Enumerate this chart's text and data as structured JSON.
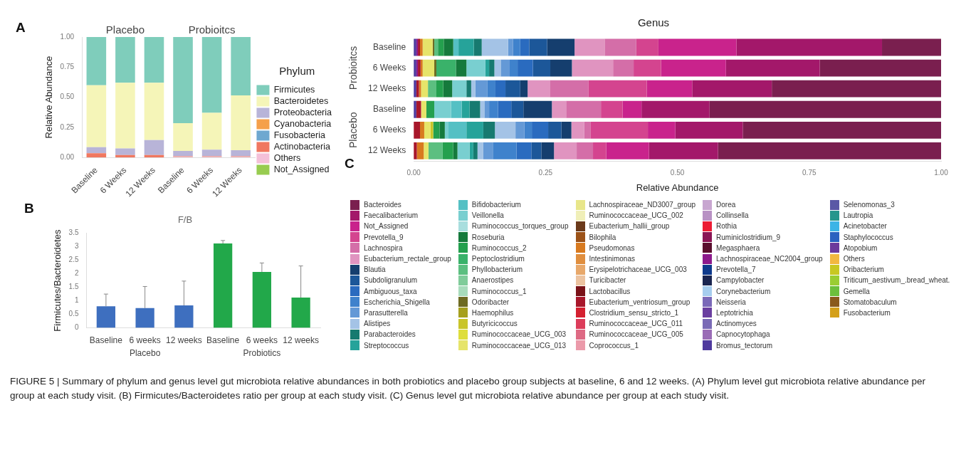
{
  "chart_data": [
    {
      "type": "bar",
      "stacked": true,
      "ylabel": "Relative Abundance",
      "legend_title": "Phylum",
      "legend": "right",
      "annotations": [
        "A",
        "Placebo",
        "Probioitcs"
      ],
      "categories": [
        "Baseline",
        "6 Weeks",
        "12 Weeks",
        "Baseline",
        "6 Weeks",
        "12 Weeks"
      ],
      "ylim": [
        0,
        1
      ],
      "yticks": [
        {
          "value": 0,
          "label": "0.00"
        },
        {
          "value": 0.25,
          "label": "0.25"
        },
        {
          "value": 0.5,
          "label": "0.50"
        },
        {
          "value": 0.75,
          "label": "0.75"
        },
        {
          "value": 1,
          "label": "1.00"
        }
      ],
      "series": [
        {
          "name": "Not_Assigned",
          "color": "#98cc50",
          "values": [
            0,
            0,
            0,
            0,
            0,
            0
          ]
        },
        {
          "name": "Others",
          "color": "#f4c0d8",
          "values": [
            0,
            0,
            0,
            0.005,
            0.005,
            0.005
          ]
        },
        {
          "name": "Actinobacteria",
          "color": "#f07860",
          "values": [
            0.035,
            0.02,
            0.02,
            0.005,
            0.005,
            0.005
          ]
        },
        {
          "name": "Fusobacteria",
          "color": "#6fa8d0",
          "values": [
            0,
            0,
            0,
            0,
            0,
            0
          ]
        },
        {
          "name": "Cyanobacteria",
          "color": "#f5a04a",
          "values": [
            0,
            0,
            0,
            0,
            0,
            0
          ]
        },
        {
          "name": "Proteobacteria",
          "color": "#b8b4d8",
          "values": [
            0.05,
            0.055,
            0.125,
            0.045,
            0.055,
            0.05
          ]
        },
        {
          "name": "Bacteroidetes",
          "color": "#f5f5b8",
          "values": [
            0.515,
            0.545,
            0.475,
            0.23,
            0.305,
            0.455
          ]
        },
        {
          "name": "Firmicutes",
          "color": "#7fcdbb",
          "values": [
            0.4,
            0.38,
            0.38,
            0.715,
            0.63,
            0.485
          ]
        }
      ]
    },
    {
      "type": "bar",
      "title": "F/B",
      "ylabel": "Firmicutes/Bacteroidetes",
      "annotations": [
        "B",
        "Placebo",
        "Probiotics"
      ],
      "categories": [
        "Baseline",
        "6 weeks",
        "12 weeks",
        "Baseline",
        "6 weeks",
        "12 weeks"
      ],
      "values": [
        0.8,
        0.73,
        0.83,
        3.12,
        2.07,
        1.12
      ],
      "colors": [
        "#3e6fbf",
        "#3e6fbf",
        "#3e6fbf",
        "#22a84a",
        "#22a84a",
        "#22a84a"
      ],
      "errors": [
        [
          0.8,
          1.25
        ],
        [
          0.73,
          1.53
        ],
        [
          0.83,
          1.73
        ],
        [
          3.12,
          3.23
        ],
        [
          2.07,
          2.4
        ],
        [
          1.12,
          2.29
        ]
      ],
      "ylim": [
        0,
        3.5
      ],
      "yticks": [
        0,
        0.5,
        1,
        1.5,
        2,
        2.5,
        3,
        3.5
      ]
    },
    {
      "type": "bar",
      "stacked": true,
      "orientation": "horizontal",
      "title": "Genus",
      "xlabel": "Relative Abundance",
      "legend": "bottom",
      "annotations": [
        "C",
        "Probioitcs",
        "Placebo",
        "FIGURE 5 | Summary of phylum and genus level gut microbiota relative abundances in both probiotics and placebo group subjects at baseline, 6 and 12 weeks. (A) Phylum level gut microbiota relative abundance per group at each study visit. (B) Firmicutes/Bacteroidetes ratio per group at each study visit. (C) Genus level gut microbiota relative abundance per group at each study visit."
      ],
      "categories": [
        "Baseline",
        "6 Weeks",
        "12 Weeks",
        "Baseline",
        "6 Weeks",
        "12 Weeks"
      ],
      "xlim": [
        0,
        1
      ],
      "xticks": [
        {
          "value": 0,
          "label": "0.00"
        },
        {
          "value": 0.25,
          "label": "0.25"
        },
        {
          "value": 0.5,
          "label": "0.50"
        },
        {
          "value": 0.75,
          "label": "0.75"
        },
        {
          "value": 1,
          "label": "1.00"
        }
      ],
      "series": [
        {
          "name": "Fusobacterium",
          "color": "#d4a01a",
          "values": [
            0,
            0,
            0,
            0,
            0,
            0
          ]
        },
        {
          "name": "Stomatobaculum",
          "color": "#8a5a1c",
          "values": [
            0,
            0,
            0,
            0,
            0,
            0
          ]
        },
        {
          "name": "Gemella",
          "color": "#6cbf3c",
          "values": [
            0,
            0,
            0,
            0,
            0,
            0
          ]
        },
        {
          "name": "Triticum_aestivum_.bread_wheat.",
          "color": "#9acd32",
          "values": [
            0,
            0,
            0,
            0,
            0,
            0
          ]
        },
        {
          "name": "Oribacterium",
          "color": "#c8c822",
          "values": [
            0,
            0,
            0,
            0,
            0,
            0
          ]
        },
        {
          "name": "Others",
          "color": "#f2b840",
          "values": [
            0,
            0,
            0,
            0,
            0,
            0
          ]
        },
        {
          "name": "Atopobium",
          "color": "#6c3a9c",
          "values": [
            0,
            0,
            0,
            0,
            0,
            0
          ]
        },
        {
          "name": "Staphylococcus",
          "color": "#2a62c0",
          "values": [
            0,
            0,
            0,
            0,
            0,
            0
          ]
        },
        {
          "name": "Acinetobacter",
          "color": "#3cb4e6",
          "values": [
            0,
            0,
            0,
            0,
            0,
            0
          ]
        },
        {
          "name": "Lautropia",
          "color": "#26968c",
          "values": [
            0,
            0,
            0,
            0,
            0,
            0
          ]
        },
        {
          "name": "Selenomonas_3",
          "color": "#5a58a6",
          "values": [
            0,
            0,
            0,
            0,
            0,
            0
          ]
        },
        {
          "name": "Bromus_tectorum",
          "color": "#4f3a9e",
          "values": [
            0.005,
            0.005,
            0.005,
            0.005,
            0,
            0
          ]
        },
        {
          "name": "Capnocytophaga",
          "color": "#9a6cb6",
          "values": [
            0,
            0,
            0,
            0,
            0,
            0
          ]
        },
        {
          "name": "Actinomyces",
          "color": "#7a6ab6",
          "values": [
            0,
            0,
            0,
            0,
            0,
            0
          ]
        },
        {
          "name": "Leptotrichia",
          "color": "#6a3ea0",
          "values": [
            0,
            0,
            0,
            0,
            0,
            0
          ]
        },
        {
          "name": "Neisseria",
          "color": "#7a68b8",
          "values": [
            0,
            0,
            0,
            0,
            0,
            0
          ]
        },
        {
          "name": "Corynebacterium",
          "color": "#a6cdee",
          "values": [
            0,
            0,
            0,
            0,
            0,
            0
          ]
        },
        {
          "name": "Campylobacter",
          "color": "#1a2550",
          "values": [
            0,
            0,
            0,
            0,
            0,
            0
          ]
        },
        {
          "name": "Prevotella_7",
          "color": "#0e3a8c",
          "values": [
            0,
            0,
            0,
            0,
            0,
            0
          ]
        },
        {
          "name": "Lachnospiraceae_NC2004_group",
          "color": "#8c1a8c",
          "values": [
            0.003,
            0.003,
            0,
            0,
            0,
            0
          ]
        },
        {
          "name": "Megasphaera",
          "color": "#5a0f2e",
          "values": [
            0,
            0,
            0,
            0,
            0,
            0
          ]
        },
        {
          "name": "Ruminiclostridium_9",
          "color": "#8a1454",
          "values": [
            0,
            0,
            0,
            0,
            0,
            0
          ]
        },
        {
          "name": "Rothia",
          "color": "#ec1c34",
          "values": [
            0,
            0,
            0,
            0,
            0,
            0
          ]
        },
        {
          "name": "Collinsella",
          "color": "#b891c4",
          "values": [
            0,
            0,
            0,
            0,
            0,
            0
          ]
        },
        {
          "name": "Dorea",
          "color": "#c8a6d0",
          "values": [
            0,
            0,
            0,
            0,
            0,
            0
          ]
        },
        {
          "name": "Coprococcus_1",
          "color": "#eb9aaa",
          "values": [
            0,
            0,
            0,
            0,
            0,
            0
          ]
        },
        {
          "name": "Ruminococcaceae_UCG_005",
          "color": "#de6a84",
          "values": [
            0,
            0,
            0,
            0,
            0,
            0
          ]
        },
        {
          "name": "Ruminococcaceae_UCG_011",
          "color": "#dc3c5a",
          "values": [
            0,
            0,
            0,
            0,
            0,
            0
          ]
        },
        {
          "name": "Clostridium_sensu_stricto_1",
          "color": "#d42030",
          "values": [
            0,
            0,
            0,
            0,
            0,
            0
          ]
        },
        {
          "name": "Eubacterium_ventriosum_group",
          "color": "#a8172b",
          "values": [
            0.004,
            0.005,
            0.005,
            0.009,
            0.012,
            0.006
          ]
        },
        {
          "name": "Lactobacillus",
          "color": "#7a1218",
          "values": [
            0,
            0,
            0,
            0,
            0,
            0
          ]
        },
        {
          "name": "Turicibacter",
          "color": "#ecc3a0",
          "values": [
            0,
            0,
            0,
            0,
            0,
            0
          ]
        },
        {
          "name": "Erysipelotrichaceae_UCG_003",
          "color": "#e8a86a",
          "values": [
            0,
            0,
            0,
            0,
            0,
            0
          ]
        },
        {
          "name": "Intestinimonas",
          "color": "#e08e3e",
          "values": [
            0,
            0,
            0,
            0,
            0,
            0
          ]
        },
        {
          "name": "Pseudomonas",
          "color": "#d87a1f",
          "values": [
            0.005,
            0.004,
            0.004,
            0,
            0.008,
            0.013
          ]
        },
        {
          "name": "Bilophila",
          "color": "#9c5218",
          "values": [
            0,
            0,
            0,
            0,
            0,
            0
          ]
        },
        {
          "name": "Eubacterium_hallii_group",
          "color": "#6b3a1a",
          "values": [
            0,
            0,
            0,
            0,
            0,
            0
          ]
        },
        {
          "name": "Ruminococcaceae_UCG_002",
          "color": "#f0efb8",
          "values": [
            0,
            0,
            0,
            0,
            0,
            0
          ]
        },
        {
          "name": "Lachnospiraceae_ND3007_group",
          "color": "#e8e68a",
          "values": [
            0,
            0,
            0,
            0,
            0,
            0
          ]
        },
        {
          "name": "Ruminococcaceae_UCG_013",
          "color": "#e6e46a",
          "values": [
            0.019,
            0.022,
            0.013,
            0.01,
            0.012,
            0.009
          ]
        },
        {
          "name": "Ruminococcaceae_UCG_003",
          "color": "#dede3c",
          "values": [
            0,
            0,
            0,
            0,
            0,
            0
          ]
        },
        {
          "name": "Butyricicoccus",
          "color": "#c9c529",
          "values": [
            0,
            0,
            0,
            0,
            0.005,
            0
          ]
        },
        {
          "name": "Haemophilus",
          "color": "#a6a01e",
          "values": [
            0,
            0,
            0,
            0,
            0,
            0
          ]
        },
        {
          "name": "Odoribacter",
          "color": "#6e6b22",
          "values": [
            0.003,
            0.004,
            0,
            0,
            0,
            0
          ]
        },
        {
          "name": "Ruminococcus_1",
          "color": "#a8dcbc",
          "values": [
            0,
            0,
            0,
            0,
            0,
            0
          ]
        },
        {
          "name": "Anaerostipes",
          "color": "#80cc9a",
          "values": [
            0,
            0,
            0,
            0,
            0,
            0
          ]
        },
        {
          "name": "Phyllobacterium",
          "color": "#5cbf80",
          "values": [
            0.007,
            0,
            0.016,
            0,
            0,
            0.027
          ]
        },
        {
          "name": "Peptoclostridium",
          "color": "#3ab26a",
          "values": [
            0,
            0.037,
            0,
            0,
            0,
            0
          ]
        },
        {
          "name": "Ruminococcus_2",
          "color": "#24a04e",
          "values": [
            0.011,
            0,
            0.013,
            0.015,
            0.012,
            0.02
          ]
        },
        {
          "name": "Roseburia",
          "color": "#157a3c",
          "values": [
            0.018,
            0.02,
            0.017,
            0,
            0.01,
            0.008
          ]
        },
        {
          "name": "Ruminococcus_torques_group",
          "color": "#a8dede",
          "values": [
            0,
            0,
            0,
            0,
            0,
            0
          ]
        },
        {
          "name": "Veillonella",
          "color": "#79cfd0",
          "values": [
            0,
            0.036,
            0.027,
            0.032,
            0.007,
            0.023
          ]
        },
        {
          "name": "Bifidobacterium",
          "color": "#55c0c4",
          "values": [
            0.01,
            0,
            0,
            0.02,
            0.034,
            0
          ]
        },
        {
          "name": "Streptococcus",
          "color": "#26a39a",
          "values": [
            0.029,
            0.007,
            0,
            0.015,
            0.032,
            0.007
          ]
        },
        {
          "name": "Parabacteroides",
          "color": "#177a70",
          "values": [
            0.015,
            0.01,
            0.009,
            0.02,
            0.022,
            0.008
          ]
        },
        {
          "name": "Alistipes",
          "color": "#a4c3e6",
          "values": [
            0.05,
            0.012,
            0.008,
            0.008,
            0.039,
            0.011
          ]
        },
        {
          "name": "Parasutterella",
          "color": "#6499d6",
          "values": [
            0.009,
            0.017,
            0.023,
            0.009,
            0.017,
            0.018
          ]
        },
        {
          "name": "Escherichia_Shigella",
          "color": "#3f82cc",
          "values": [
            0.014,
            0.015,
            0.015,
            0.017,
            0.014,
            0.045
          ]
        },
        {
          "name": "Ambiguous_taxa",
          "color": "#2a6bbf",
          "values": [
            0.017,
            0.029,
            0.019,
            0.025,
            0.031,
            0.028
          ]
        },
        {
          "name": "Subdoligranulum",
          "color": "#1c5799",
          "values": [
            0.034,
            0.033,
            0.028,
            0.023,
            0.025,
            0.019
          ]
        },
        {
          "name": "Blautia",
          "color": "#153e6e",
          "values": [
            0.052,
            0.041,
            0.014,
            0.054,
            0.019,
            0.024
          ]
        },
        {
          "name": "Eubacterium_rectale_group",
          "color": "#e094c0",
          "values": [
            0.057,
            0.078,
            0.042,
            0.027,
            0.024,
            0.043
          ]
        },
        {
          "name": "Lachnospira",
          "color": "#d46ea8",
          "values": [
            0.06,
            0.039,
            0.073,
            0.066,
            0.012,
            0.031
          ]
        },
        {
          "name": "Prevotella_9",
          "color": "#d4448f",
          "values": [
            0.042,
            0.052,
            0.111,
            0.041,
            0.109,
            0.025
          ]
        },
        {
          "name": "Not_Assigned",
          "color": "#c9238c",
          "values": [
            0.148,
            0.123,
            0.086,
            0.036,
            0.052,
            0.081
          ]
        },
        {
          "name": "Faecalibacterium",
          "color": "#a3186a",
          "values": [
            0.276,
            0.178,
            0.151,
            0.129,
            0.128,
            0.131
          ]
        },
        {
          "name": "Bacteroides",
          "color": "#7a1f4f",
          "values": [
            0.112,
            0.23,
            0.321,
            0.439,
            0.376,
            0.423
          ]
        }
      ]
    }
  ]
}
